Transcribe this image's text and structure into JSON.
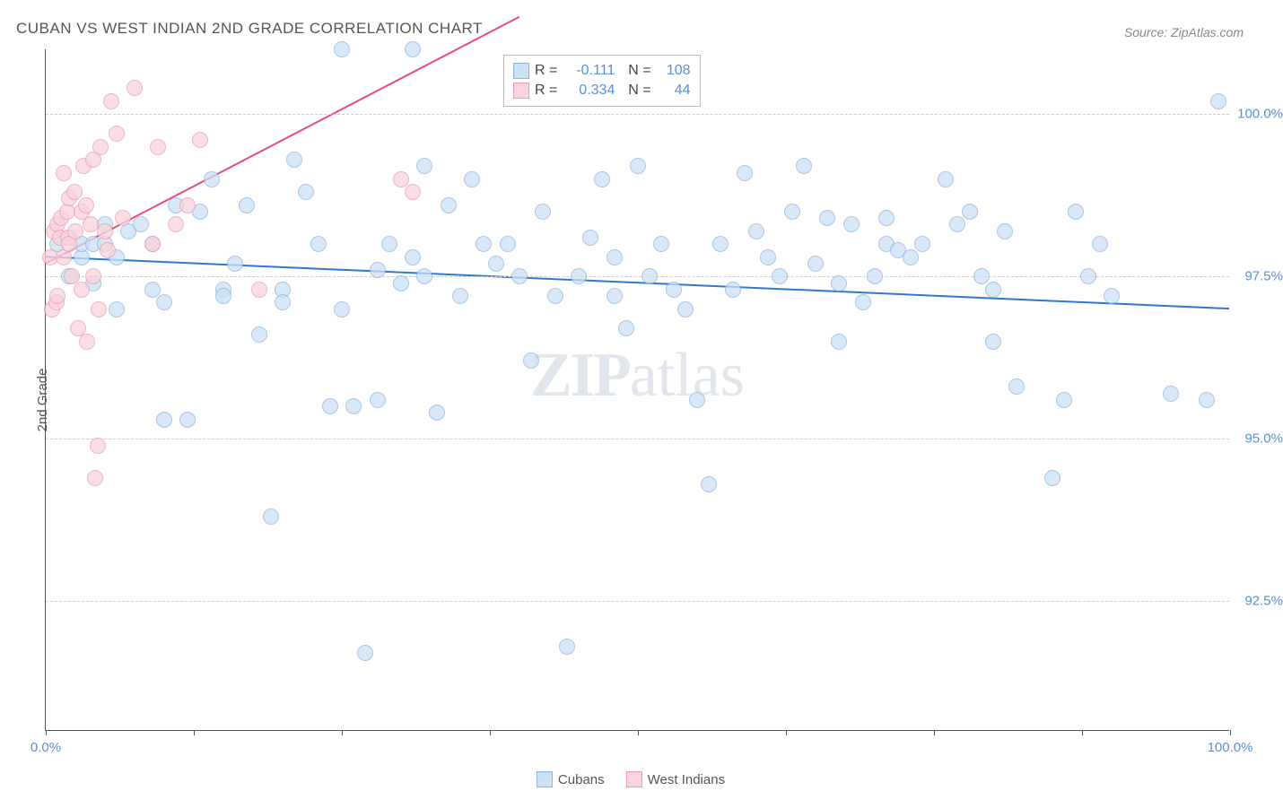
{
  "title": "CUBAN VS WEST INDIAN 2ND GRADE CORRELATION CHART",
  "source": "Source: ZipAtlas.com",
  "ylabel": "2nd Grade",
  "watermark_bold": "ZIP",
  "watermark_light": "atlas",
  "chart": {
    "type": "scatter",
    "xlim": [
      0,
      100
    ],
    "ylim": [
      90.5,
      101
    ],
    "yticks": [
      92.5,
      95.0,
      97.5,
      100.0
    ],
    "ytick_labels": [
      "92.5%",
      "95.0%",
      "97.5%",
      "100.0%"
    ],
    "xtick_positions": [
      0,
      12.5,
      25,
      37.5,
      50,
      62.5,
      75,
      87.5,
      100
    ],
    "xtick_labels_show": {
      "0": "0.0%",
      "100": "100.0%"
    },
    "background_color": "#ffffff",
    "grid_color": "#cccccc",
    "axis_color": "#555555",
    "marker_radius": 9,
    "marker_stroke_width": 1.5,
    "series": [
      {
        "name": "Cubans",
        "fill": "#cde1f5",
        "stroke": "#8bb4e0",
        "fill_opacity": 0.75,
        "R": "-0.111",
        "N": "108",
        "trend": {
          "x1": 0,
          "y1": 97.8,
          "x2": 100,
          "y2": 97.0,
          "color": "#2e7ad1",
          "width": 2
        },
        "points": [
          [
            1,
            98
          ],
          [
            2,
            98.1
          ],
          [
            2,
            97.5
          ],
          [
            3,
            97.8
          ],
          [
            3,
            98
          ],
          [
            4,
            98
          ],
          [
            4,
            97.4
          ],
          [
            5,
            98
          ],
          [
            5,
            98.3
          ],
          [
            6,
            97.8
          ],
          [
            6,
            97
          ],
          [
            7,
            98.2
          ],
          [
            8,
            98.3
          ],
          [
            9,
            98
          ],
          [
            9,
            97.3
          ],
          [
            10,
            97.1
          ],
          [
            10,
            95.3
          ],
          [
            11,
            98.6
          ],
          [
            12,
            95.3
          ],
          [
            13,
            98.5
          ],
          [
            14,
            99
          ],
          [
            15,
            97.3
          ],
          [
            15,
            97.2
          ],
          [
            16,
            97.7
          ],
          [
            17,
            98.6
          ],
          [
            18,
            96.6
          ],
          [
            19,
            93.8
          ],
          [
            20,
            97.3
          ],
          [
            20,
            97.1
          ],
          [
            21,
            99.3
          ],
          [
            22,
            98.8
          ],
          [
            23,
            98
          ],
          [
            24,
            95.5
          ],
          [
            25,
            101
          ],
          [
            25,
            97
          ],
          [
            26,
            95.5
          ],
          [
            27,
            91.7
          ],
          [
            28,
            97.6
          ],
          [
            28,
            95.6
          ],
          [
            29,
            98
          ],
          [
            30,
            97.4
          ],
          [
            31,
            101
          ],
          [
            31,
            97.8
          ],
          [
            32,
            99.2
          ],
          [
            32,
            97.5
          ],
          [
            33,
            95.4
          ],
          [
            34,
            98.6
          ],
          [
            35,
            97.2
          ],
          [
            36,
            99
          ],
          [
            37,
            98
          ],
          [
            38,
            97.7
          ],
          [
            39,
            98
          ],
          [
            40,
            97.5
          ],
          [
            41,
            96.2
          ],
          [
            42,
            98.5
          ],
          [
            43,
            97.2
          ],
          [
            44,
            91.8
          ],
          [
            45,
            97.5
          ],
          [
            46,
            98.1
          ],
          [
            47,
            99
          ],
          [
            48,
            97.2
          ],
          [
            48,
            97.8
          ],
          [
            49,
            96.7
          ],
          [
            50,
            99.2
          ],
          [
            51,
            97.5
          ],
          [
            52,
            98
          ],
          [
            53,
            97.3
          ],
          [
            54,
            97
          ],
          [
            55,
            95.6
          ],
          [
            56,
            94.3
          ],
          [
            57,
            98
          ],
          [
            58,
            97.3
          ],
          [
            59,
            99.1
          ],
          [
            60,
            98.2
          ],
          [
            61,
            97.8
          ],
          [
            62,
            97.5
          ],
          [
            63,
            98.5
          ],
          [
            64,
            99.2
          ],
          [
            65,
            97.7
          ],
          [
            66,
            98.4
          ],
          [
            67,
            96.5
          ],
          [
            67,
            97.4
          ],
          [
            68,
            98.3
          ],
          [
            69,
            97.1
          ],
          [
            70,
            97.5
          ],
          [
            71,
            98
          ],
          [
            71,
            98.4
          ],
          [
            72,
            97.9
          ],
          [
            73,
            97.8
          ],
          [
            74,
            98
          ],
          [
            76,
            99
          ],
          [
            77,
            98.3
          ],
          [
            78,
            98.5
          ],
          [
            79,
            97.5
          ],
          [
            80,
            97.3
          ],
          [
            80,
            96.5
          ],
          [
            81,
            98.2
          ],
          [
            82,
            95.8
          ],
          [
            85,
            94.4
          ],
          [
            86,
            95.6
          ],
          [
            87,
            98.5
          ],
          [
            88,
            97.5
          ],
          [
            89,
            98
          ],
          [
            90,
            97.2
          ],
          [
            95,
            95.7
          ],
          [
            98,
            95.6
          ],
          [
            99,
            100.2
          ]
        ]
      },
      {
        "name": "West Indians",
        "fill": "#f9d3dd",
        "stroke": "#ec9bb2",
        "fill_opacity": 0.75,
        "R": "0.334",
        "N": "44",
        "trend": {
          "x1": 0,
          "y1": 97.7,
          "x2": 40,
          "y2": 101.5,
          "color": "#e94a7a",
          "width": 2
        },
        "points": [
          [
            0.4,
            97.8
          ],
          [
            0.5,
            97
          ],
          [
            0.7,
            98.2
          ],
          [
            0.9,
            97.1
          ],
          [
            1,
            98.3
          ],
          [
            1,
            97.2
          ],
          [
            1.2,
            98.1
          ],
          [
            1.3,
            98.4
          ],
          [
            1.5,
            99.1
          ],
          [
            1.5,
            97.8
          ],
          [
            1.8,
            98.5
          ],
          [
            1.9,
            98.1
          ],
          [
            2,
            98.7
          ],
          [
            2,
            98
          ],
          [
            2.2,
            97.5
          ],
          [
            2.4,
            98.8
          ],
          [
            2.5,
            98.2
          ],
          [
            2.7,
            96.7
          ],
          [
            3,
            98.5
          ],
          [
            3,
            97.3
          ],
          [
            3.2,
            99.2
          ],
          [
            3.4,
            98.6
          ],
          [
            3.5,
            96.5
          ],
          [
            3.8,
            98.3
          ],
          [
            4,
            99.3
          ],
          [
            4,
            97.5
          ],
          [
            4.2,
            94.4
          ],
          [
            4.4,
            94.9
          ],
          [
            4.5,
            97
          ],
          [
            4.6,
            99.5
          ],
          [
            5,
            98.2
          ],
          [
            5.2,
            97.9
          ],
          [
            5.5,
            100.2
          ],
          [
            6,
            99.7
          ],
          [
            6.5,
            98.4
          ],
          [
            7.5,
            100.4
          ],
          [
            9,
            98
          ],
          [
            9.5,
            99.5
          ],
          [
            11,
            98.3
          ],
          [
            12,
            98.6
          ],
          [
            13,
            99.6
          ],
          [
            18,
            97.3
          ],
          [
            30,
            99
          ],
          [
            31,
            98.8
          ]
        ]
      }
    ]
  },
  "legend_bottom": [
    {
      "label": "Cubans",
      "fill": "#cde1f5",
      "stroke": "#8bb4e0"
    },
    {
      "label": "West Indians",
      "fill": "#f9d3dd",
      "stroke": "#ec9bb2"
    }
  ]
}
